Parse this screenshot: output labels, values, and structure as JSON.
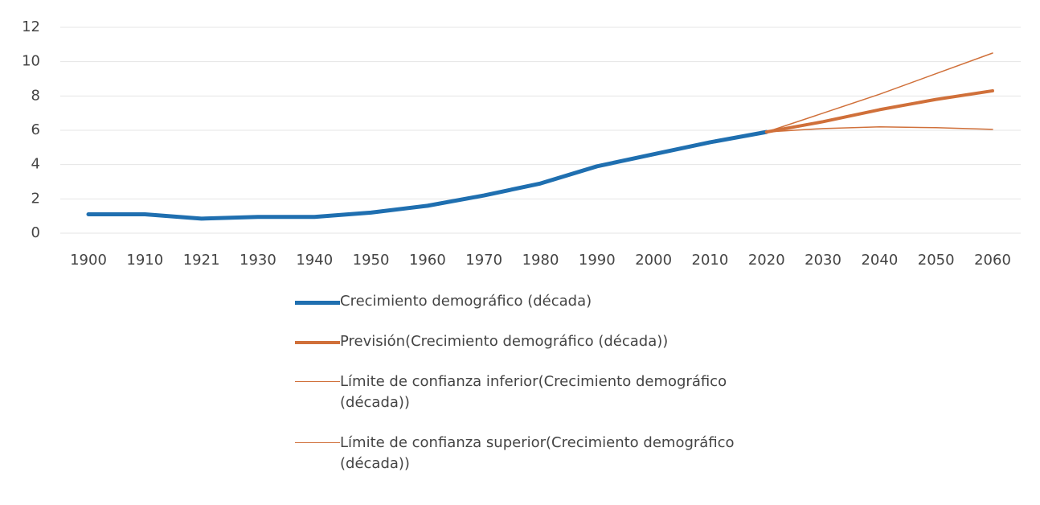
{
  "chart_data": {
    "type": "line",
    "categories": [
      "1900",
      "1910",
      "1921",
      "1930",
      "1940",
      "1950",
      "1960",
      "1970",
      "1980",
      "1990",
      "2000",
      "2010",
      "2020",
      "2030",
      "2040",
      "2050",
      "2060"
    ],
    "series": [
      {
        "name": "Crecimiento demográfico (década)",
        "color": "#1f6fb0",
        "width": 5,
        "values": [
          1.1,
          1.1,
          0.85,
          0.95,
          0.95,
          1.2,
          1.6,
          2.2,
          2.9,
          3.9,
          4.6,
          5.3,
          5.9,
          null,
          null,
          null,
          null
        ]
      },
      {
        "name": "Previsión(Crecimiento demográfico (década))",
        "color": "#d0703a",
        "width": 4,
        "values": [
          null,
          null,
          null,
          null,
          null,
          null,
          null,
          null,
          null,
          null,
          null,
          null,
          5.9,
          6.5,
          7.2,
          7.8,
          8.3
        ]
      },
      {
        "name": "Límite de confianza inferior(Crecimiento demográfico (década))",
        "color": "#d0703a",
        "width": 1.5,
        "values": [
          null,
          null,
          null,
          null,
          null,
          null,
          null,
          null,
          null,
          null,
          null,
          null,
          5.9,
          6.1,
          6.2,
          6.15,
          6.05
        ]
      },
      {
        "name": "Límite de confianza superior(Crecimiento demográfico (década))",
        "color": "#d0703a",
        "width": 1.5,
        "values": [
          null,
          null,
          null,
          null,
          null,
          null,
          null,
          null,
          null,
          null,
          null,
          null,
          5.9,
          7.0,
          8.1,
          9.3,
          10.5
        ]
      }
    ],
    "ylim": [
      0,
      12
    ],
    "yticks": [
      0,
      2,
      4,
      6,
      8,
      10,
      12
    ],
    "grid": true,
    "legend": "bottom"
  }
}
